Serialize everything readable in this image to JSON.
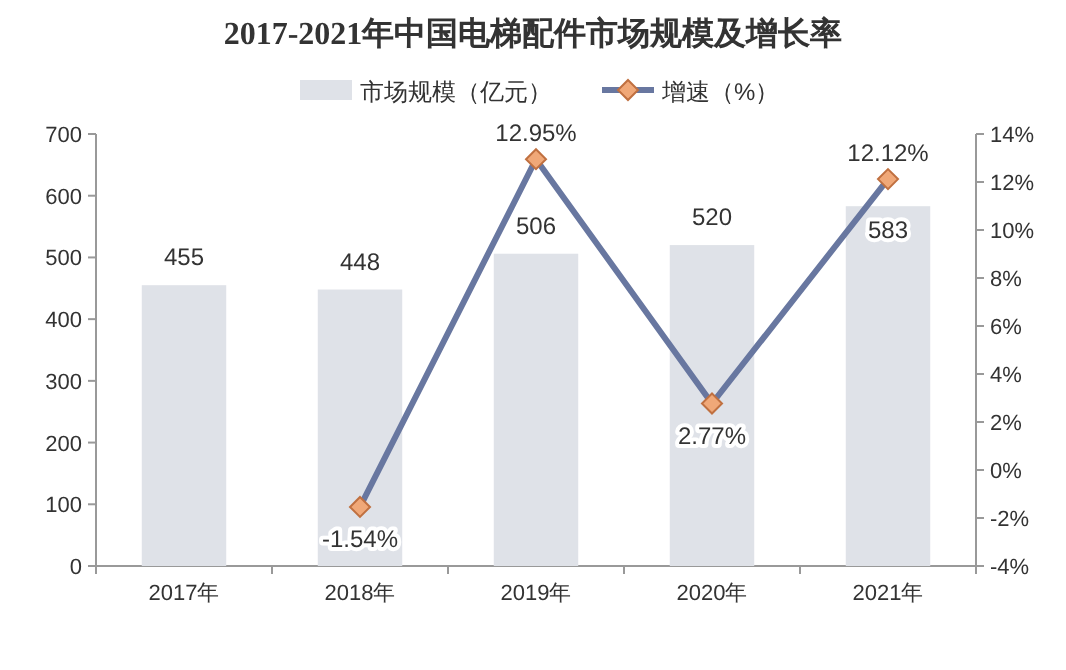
{
  "chart_data": {
    "type": "bar",
    "title": "2017-2021年中国电梯配件市场规模及增长率",
    "categories": [
      "2017年",
      "2018年",
      "2019年",
      "2020年",
      "2021年"
    ],
    "series": [
      {
        "name": "市场规模（亿元）",
        "color": "#dfe2e8",
        "values": [
          455,
          448,
          506,
          520,
          583
        ]
      },
      {
        "name": "增速（%）",
        "type": "line",
        "axis": "y2",
        "color": "#6877a0",
        "marker": "diamond",
        "colors": [
          "#f0a878",
          "#f0a878",
          "#f0a878",
          "#f0a878",
          "#f0a878"
        ],
        "values": [
          null,
          -1.54,
          12.95,
          2.77,
          12.12
        ],
        "value_labels": [
          null,
          "-1.54%",
          "12.95%",
          "2.77%",
          "12.12%"
        ]
      }
    ],
    "ylim": [
      0,
      700
    ],
    "yticks": [
      0,
      100,
      200,
      300,
      400,
      500,
      600,
      700
    ],
    "y2lim": [
      -4,
      14
    ],
    "y2ticks": [
      {
        "value": -4,
        "label": "-4%"
      },
      {
        "value": -2,
        "label": "-2%"
      },
      {
        "value": 0,
        "label": "0%"
      },
      {
        "value": 2,
        "label": "2%"
      },
      {
        "value": 4,
        "label": "4%"
      },
      {
        "value": 6,
        "label": "6%"
      },
      {
        "value": 8,
        "label": "8%"
      },
      {
        "value": 10,
        "label": "10%"
      },
      {
        "value": 12,
        "label": "12%"
      },
      {
        "value": 14,
        "label": "14%"
      }
    ],
    "data_labels": true,
    "legend": "top"
  }
}
